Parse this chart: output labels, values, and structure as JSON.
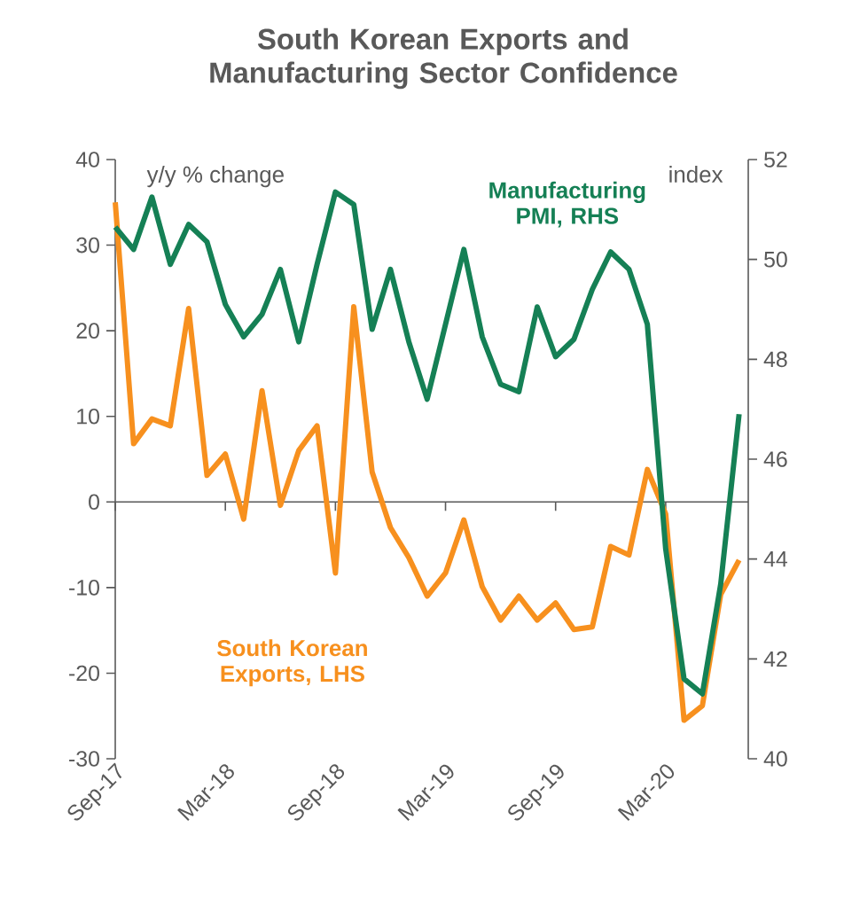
{
  "chart_data": {
    "type": "line",
    "title": "South Korean Exports and Manufacturing Sector Confidence",
    "ylabel": "y/y % change",
    "y2label": "index",
    "categories": [
      "Sep-17",
      null,
      null,
      null,
      null,
      null,
      "Mar-18",
      null,
      null,
      null,
      null,
      null,
      "Sep-18",
      null,
      null,
      null,
      null,
      null,
      "Mar-19",
      null,
      null,
      null,
      null,
      null,
      "Sep-19",
      null,
      null,
      null,
      null,
      null,
      "Mar-20",
      null,
      null,
      null,
      null
    ],
    "ylim": [
      -30,
      40
    ],
    "yticks": [
      -30,
      -20,
      -10,
      0,
      10,
      20,
      30,
      40
    ],
    "y2lim": [
      40,
      52
    ],
    "y2ticks": [
      40,
      42,
      44,
      46,
      48,
      50,
      52
    ],
    "series": [
      {
        "name": "South Korean Exports, LHS",
        "color": "#f7901e",
        "values": [
          35,
          6.8,
          9.7,
          8.9,
          22.6,
          3.1,
          5.6,
          -2,
          13,
          -0.4,
          6,
          8.9,
          -8.3,
          22.8,
          3.5,
          -3,
          -6.5,
          -11,
          -8.3,
          -2.1,
          -9.9,
          -13.8,
          -11,
          -13.8,
          -11.8,
          -14.9,
          -14.6,
          -5.2,
          -6.2,
          3.8,
          -1.4,
          -25.5,
          -23.8,
          -10.8,
          -6.8
        ]
      },
      {
        "name": "Manufacturing PMI, RHS",
        "color": "#158055",
        "axis": "y2",
        "values": [
          50.65,
          50.2,
          51.25,
          49.9,
          50.7,
          50.35,
          49.1,
          48.45,
          48.9,
          49.8,
          48.35,
          49.9,
          51.35,
          51.1,
          48.6,
          49.8,
          48.35,
          47.2,
          48.7,
          50.2,
          48.45,
          47.5,
          47.35,
          49.05,
          48.05,
          48.4,
          49.4,
          50.15,
          49.8,
          48.7,
          44.2,
          41.6,
          41.3,
          43.5,
          46.9
        ]
      }
    ]
  }
}
